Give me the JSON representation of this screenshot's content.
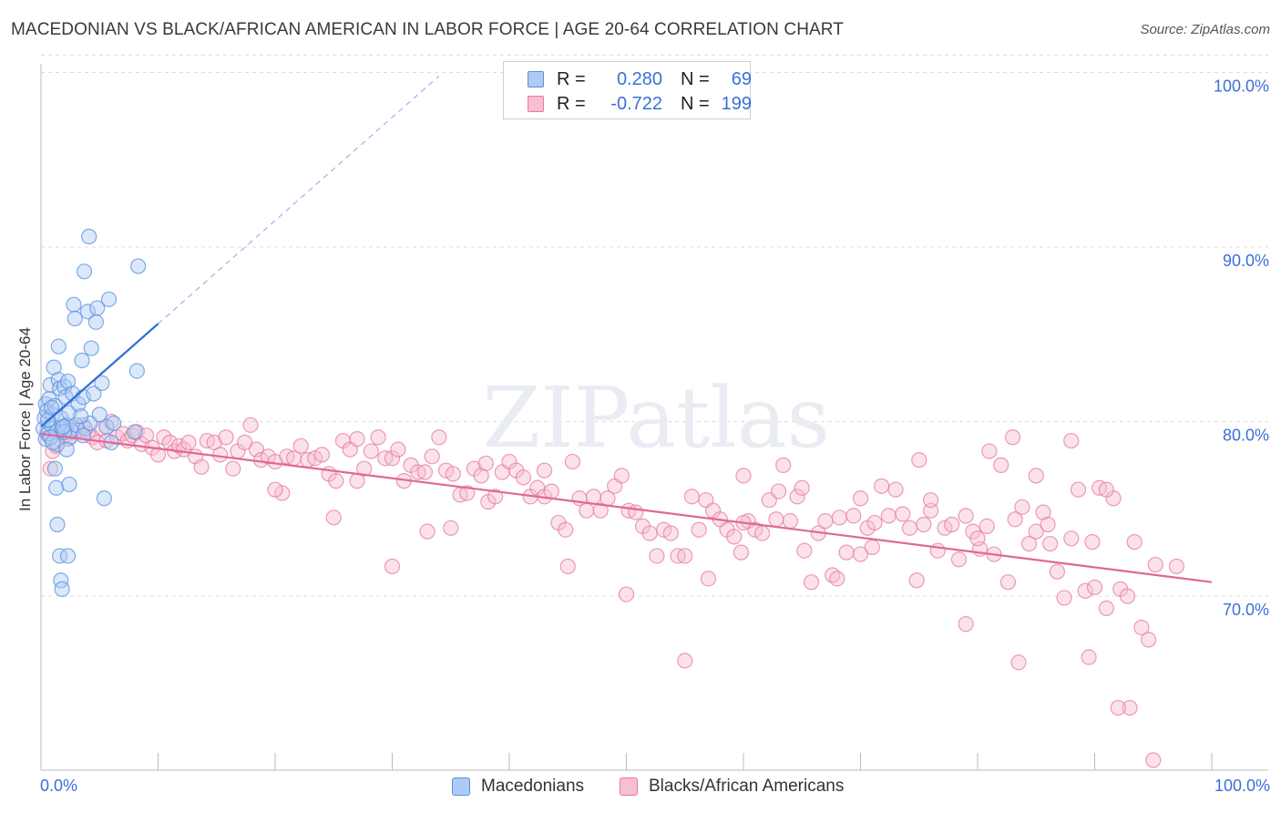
{
  "header": {
    "title": "MACEDONIAN VS BLACK/AFRICAN AMERICAN IN LABOR FORCE | AGE 20-64 CORRELATION CHART",
    "source": "Source: ZipAtlas.com"
  },
  "watermark": "ZIPatlas",
  "legend": {
    "rows": [
      {
        "r_label": "R =",
        "r_value": "0.280",
        "n_label": "N =",
        "n_value": "69"
      },
      {
        "r_label": "R =",
        "r_value": "-0.722",
        "n_label": "N =",
        "n_value": "199"
      }
    ]
  },
  "bottom_legend": {
    "items": [
      "Macedonians",
      "Blacks/African Americans"
    ]
  },
  "x_axis": {
    "min_label": "0.0%",
    "max_label": "100.0%"
  },
  "chart_data": {
    "type": "scatter",
    "title": "MACEDONIAN VS BLACK/AFRICAN AMERICAN IN LABOR FORCE | AGE 20-64 CORRELATION CHART",
    "xlabel": "",
    "ylabel": "In Labor Force | Age 20-64",
    "xlim": [
      0,
      100
    ],
    "ylim": [
      59.5,
      103
    ],
    "y_ticks": [
      70,
      80,
      90,
      100
    ],
    "y_tick_labels": [
      "70.0%",
      "80.0%",
      "90.0%",
      "100.0%"
    ],
    "x_tick_labels": [
      "0.0%",
      "100.0%"
    ],
    "grid": "horizontal dashed",
    "legend_placement": "top-center",
    "colors": {
      "macedonians": "#5b8fe0",
      "macedonians_fill": "#aecbf5",
      "macedonians_line": "#2f6fd6",
      "black": "#e7799f",
      "black_fill": "#f7bfd1",
      "black_line": "#e0679a",
      "tick_label": "#3a6fd8"
    },
    "series": [
      {
        "name": "Macedonians",
        "R": 0.28,
        "N": 69,
        "trend": {
          "x0": 0,
          "y0": 79.7,
          "x1": 10,
          "y1": 85.6,
          "dashed_to_x": 34,
          "dashed_to_y": 99.8
        },
        "points": [
          [
            0.2,
            79.6
          ],
          [
            0.3,
            80.2
          ],
          [
            0.4,
            81.0
          ],
          [
            0.4,
            79.0
          ],
          [
            0.5,
            80.6
          ],
          [
            0.6,
            79.3
          ],
          [
            0.7,
            81.3
          ],
          [
            0.8,
            82.1
          ],
          [
            0.9,
            79.8
          ],
          [
            1.0,
            80.4
          ],
          [
            1.1,
            83.1
          ],
          [
            1.2,
            80.9
          ],
          [
            1.3,
            79.4
          ],
          [
            1.4,
            78.7
          ],
          [
            1.5,
            84.3
          ],
          [
            1.5,
            82.4
          ],
          [
            1.6,
            81.9
          ],
          [
            1.7,
            80.2
          ],
          [
            1.8,
            79.6
          ],
          [
            2.0,
            82.0
          ],
          [
            2.1,
            81.4
          ],
          [
            2.2,
            79.8
          ],
          [
            2.3,
            82.3
          ],
          [
            2.4,
            80.5
          ],
          [
            2.5,
            79.1
          ],
          [
            2.6,
            79.5
          ],
          [
            2.7,
            81.6
          ],
          [
            2.8,
            86.7
          ],
          [
            2.9,
            85.9
          ],
          [
            3.0,
            79.8
          ],
          [
            3.2,
            81.0
          ],
          [
            3.5,
            83.5
          ],
          [
            3.6,
            81.4
          ],
          [
            3.7,
            88.6
          ],
          [
            3.8,
            79.6
          ],
          [
            4.0,
            86.3
          ],
          [
            4.2,
            79.9
          ],
          [
            4.3,
            84.2
          ],
          [
            4.5,
            81.6
          ],
          [
            4.7,
            85.7
          ],
          [
            4.8,
            86.5
          ],
          [
            5.0,
            80.4
          ],
          [
            5.2,
            82.2
          ],
          [
            5.4,
            75.6
          ],
          [
            5.6,
            79.7
          ],
          [
            5.8,
            87.0
          ],
          [
            6.0,
            78.8
          ],
          [
            6.2,
            79.9
          ],
          [
            1.2,
            77.3
          ],
          [
            1.3,
            76.2
          ],
          [
            1.4,
            74.1
          ],
          [
            1.6,
            72.3
          ],
          [
            1.7,
            70.9
          ],
          [
            1.8,
            70.4
          ],
          [
            2.3,
            72.3
          ],
          [
            2.4,
            76.4
          ],
          [
            3.6,
            79.2
          ],
          [
            3.4,
            80.3
          ],
          [
            2.0,
            79.4
          ],
          [
            2.2,
            78.4
          ],
          [
            0.8,
            79.1
          ],
          [
            1.0,
            78.8
          ],
          [
            8.0,
            79.4
          ],
          [
            8.2,
            82.9
          ],
          [
            8.3,
            88.9
          ],
          [
            4.1,
            90.6
          ],
          [
            0.6,
            80.1
          ],
          [
            1.9,
            79.7
          ],
          [
            0.9,
            80.8
          ]
        ]
      },
      {
        "name": "Blacks/African Americans",
        "R": -0.722,
        "N": 199,
        "trend": {
          "x0": 0,
          "y0": 79.3,
          "x1": 100,
          "y1": 70.8
        },
        "points": [
          [
            0.5,
            79.3
          ],
          [
            0.8,
            77.3
          ],
          [
            1.0,
            78.3
          ],
          [
            1.3,
            78.6
          ],
          [
            1.6,
            79.6
          ],
          [
            2.0,
            79.2
          ],
          [
            2.3,
            79.0
          ],
          [
            2.7,
            79.4
          ],
          [
            3.2,
            79.5
          ],
          [
            3.6,
            79.8
          ],
          [
            4.0,
            79.3
          ],
          [
            4.4,
            79.1
          ],
          [
            4.8,
            78.8
          ],
          [
            5.2,
            79.6
          ],
          [
            5.6,
            78.9
          ],
          [
            6.0,
            80.0
          ],
          [
            6.5,
            79.1
          ],
          [
            7.0,
            79.3
          ],
          [
            7.4,
            78.9
          ],
          [
            7.8,
            79.2
          ],
          [
            8.2,
            79.4
          ],
          [
            8.6,
            78.7
          ],
          [
            9.0,
            79.2
          ],
          [
            9.5,
            78.5
          ],
          [
            10.0,
            78.1
          ],
          [
            10.5,
            79.1
          ],
          [
            11.0,
            78.8
          ],
          [
            11.4,
            78.3
          ],
          [
            11.8,
            78.6
          ],
          [
            12.2,
            78.4
          ],
          [
            12.6,
            78.8
          ],
          [
            13.2,
            78.0
          ],
          [
            13.7,
            77.4
          ],
          [
            14.2,
            78.9
          ],
          [
            14.8,
            78.8
          ],
          [
            15.3,
            78.1
          ],
          [
            15.8,
            79.1
          ],
          [
            16.4,
            77.3
          ],
          [
            16.8,
            78.3
          ],
          [
            17.4,
            78.8
          ],
          [
            17.9,
            79.8
          ],
          [
            18.4,
            78.4
          ],
          [
            18.8,
            77.8
          ],
          [
            19.4,
            78.0
          ],
          [
            20.0,
            77.7
          ],
          [
            20.6,
            75.9
          ],
          [
            21.0,
            78.0
          ],
          [
            21.6,
            77.9
          ],
          [
            22.2,
            78.6
          ],
          [
            22.8,
            77.8
          ],
          [
            23.4,
            77.9
          ],
          [
            24.0,
            78.1
          ],
          [
            24.6,
            77.0
          ],
          [
            25.2,
            76.6
          ],
          [
            25.8,
            78.9
          ],
          [
            26.4,
            78.4
          ],
          [
            27.0,
            79.0
          ],
          [
            27.6,
            77.3
          ],
          [
            28.2,
            78.3
          ],
          [
            28.8,
            79.1
          ],
          [
            29.4,
            77.9
          ],
          [
            30.0,
            77.9
          ],
          [
            30.5,
            78.4
          ],
          [
            31.0,
            76.6
          ],
          [
            31.6,
            77.5
          ],
          [
            32.2,
            77.1
          ],
          [
            32.8,
            77.1
          ],
          [
            33.4,
            78.0
          ],
          [
            34.0,
            79.1
          ],
          [
            34.6,
            77.2
          ],
          [
            35.2,
            77.0
          ],
          [
            35.8,
            75.8
          ],
          [
            36.4,
            75.9
          ],
          [
            37.0,
            77.3
          ],
          [
            37.6,
            76.9
          ],
          [
            38.2,
            75.4
          ],
          [
            38.8,
            75.7
          ],
          [
            39.4,
            77.1
          ],
          [
            40.0,
            77.7
          ],
          [
            40.6,
            77.2
          ],
          [
            41.2,
            76.8
          ],
          [
            41.8,
            75.7
          ],
          [
            42.4,
            76.2
          ],
          [
            43.0,
            75.7
          ],
          [
            43.6,
            76.0
          ],
          [
            44.2,
            74.2
          ],
          [
            44.8,
            73.8
          ],
          [
            45.4,
            77.7
          ],
          [
            46.0,
            75.6
          ],
          [
            46.6,
            74.9
          ],
          [
            47.2,
            75.7
          ],
          [
            47.8,
            74.9
          ],
          [
            48.4,
            75.6
          ],
          [
            49.0,
            76.3
          ],
          [
            49.6,
            76.9
          ],
          [
            50.2,
            74.9
          ],
          [
            50.8,
            74.8
          ],
          [
            51.4,
            74.0
          ],
          [
            52.0,
            73.6
          ],
          [
            52.6,
            72.3
          ],
          [
            53.2,
            73.8
          ],
          [
            53.8,
            73.6
          ],
          [
            54.4,
            72.3
          ],
          [
            55.0,
            72.3
          ],
          [
            55.6,
            75.7
          ],
          [
            56.2,
            73.8
          ],
          [
            56.8,
            75.5
          ],
          [
            57.4,
            74.9
          ],
          [
            58.0,
            74.4
          ],
          [
            58.6,
            73.8
          ],
          [
            59.2,
            73.4
          ],
          [
            59.8,
            72.5
          ],
          [
            60.4,
            74.3
          ],
          [
            61.0,
            73.8
          ],
          [
            61.6,
            73.6
          ],
          [
            62.2,
            75.5
          ],
          [
            62.8,
            74.4
          ],
          [
            63.4,
            77.5
          ],
          [
            64.0,
            74.3
          ],
          [
            64.6,
            75.7
          ],
          [
            65.2,
            72.6
          ],
          [
            65.8,
            70.8
          ],
          [
            66.4,
            73.6
          ],
          [
            67.0,
            74.3
          ],
          [
            67.6,
            71.2
          ],
          [
            68.2,
            74.5
          ],
          [
            68.8,
            72.5
          ],
          [
            69.4,
            74.6
          ],
          [
            70.0,
            72.4
          ],
          [
            70.6,
            73.9
          ],
          [
            71.2,
            74.2
          ],
          [
            71.8,
            76.3
          ],
          [
            72.4,
            74.6
          ],
          [
            73.0,
            76.1
          ],
          [
            73.6,
            74.7
          ],
          [
            74.2,
            73.9
          ],
          [
            74.8,
            70.9
          ],
          [
            75.4,
            74.1
          ],
          [
            76.0,
            74.9
          ],
          [
            76.6,
            72.6
          ],
          [
            77.2,
            73.9
          ],
          [
            77.8,
            74.1
          ],
          [
            78.4,
            72.1
          ],
          [
            79.0,
            74.6
          ],
          [
            79.6,
            73.7
          ],
          [
            80.2,
            72.7
          ],
          [
            80.8,
            74.0
          ],
          [
            81.4,
            72.4
          ],
          [
            82.0,
            77.5
          ],
          [
            82.6,
            70.8
          ],
          [
            83.2,
            74.4
          ],
          [
            83.8,
            75.1
          ],
          [
            84.4,
            73.0
          ],
          [
            85.0,
            73.7
          ],
          [
            85.6,
            74.8
          ],
          [
            86.2,
            73.0
          ],
          [
            86.8,
            71.4
          ],
          [
            87.4,
            69.9
          ],
          [
            88.0,
            73.3
          ],
          [
            88.6,
            76.1
          ],
          [
            89.2,
            70.3
          ],
          [
            89.8,
            73.1
          ],
          [
            90.4,
            76.2
          ],
          [
            91.0,
            69.3
          ],
          [
            91.6,
            75.6
          ],
          [
            92.2,
            70.4
          ],
          [
            92.8,
            70.0
          ],
          [
            93.4,
            73.1
          ],
          [
            94.0,
            68.2
          ],
          [
            94.6,
            67.5
          ],
          [
            95.2,
            71.8
          ],
          [
            81.0,
            78.3
          ],
          [
            83.0,
            79.1
          ],
          [
            91.0,
            76.1
          ],
          [
            38.0,
            77.6
          ],
          [
            60.0,
            74.2
          ],
          [
            68.0,
            71.0
          ],
          [
            76.0,
            75.5
          ],
          [
            79.0,
            68.4
          ],
          [
            83.5,
            66.2
          ],
          [
            89.5,
            66.5
          ],
          [
            93.0,
            63.6
          ],
          [
            95.0,
            60.6
          ],
          [
            20.0,
            76.1
          ],
          [
            25.0,
            74.5
          ],
          [
            30.0,
            71.7
          ],
          [
            35.0,
            73.9
          ],
          [
            45.0,
            71.7
          ],
          [
            50.0,
            70.1
          ],
          [
            55.0,
            66.3
          ],
          [
            60.0,
            76.9
          ],
          [
            65.0,
            76.2
          ],
          [
            70.0,
            75.6
          ],
          [
            75.0,
            77.8
          ],
          [
            80.0,
            73.3
          ],
          [
            85.0,
            76.9
          ],
          [
            90.0,
            70.5
          ],
          [
            92.0,
            63.6
          ],
          [
            97.0,
            71.7
          ],
          [
            33.0,
            73.7
          ],
          [
            27.0,
            76.6
          ],
          [
            43.0,
            77.2
          ],
          [
            57.0,
            71.0
          ],
          [
            63.0,
            76.0
          ],
          [
            71.0,
            72.8
          ],
          [
            86.0,
            74.1
          ],
          [
            88.0,
            78.9
          ]
        ]
      }
    ]
  }
}
